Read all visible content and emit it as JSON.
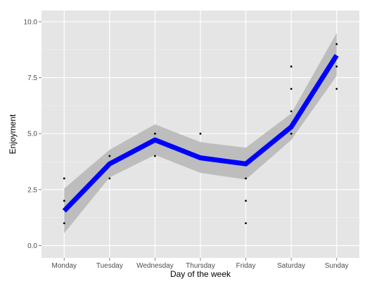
{
  "chart_data": {
    "type": "line",
    "xlabel": "Day of the week",
    "ylabel": "Enjoyment",
    "categories": [
      "Monday",
      "Tuesday",
      "Wednesday",
      "Thursday",
      "Friday",
      "Saturday",
      "Sunday"
    ],
    "ylim": [
      -0.55,
      10.5
    ],
    "yticks": [
      0.0,
      2.5,
      5.0,
      7.5,
      10.0
    ],
    "ytick_labels": [
      "0.0",
      "2.5",
      "5.0",
      "7.5",
      "10.0"
    ],
    "grid": true,
    "background_color": "#e5e5e5",
    "line_color": "#0000ff",
    "ribbon_color": "#bdbdbd",
    "point_color": "#000000",
    "series": [
      {
        "type": "line",
        "values": [
          1.55,
          3.65,
          4.72,
          3.92,
          3.65,
          5.3,
          8.5
        ]
      },
      {
        "type": "ribbon",
        "lower": [
          0.55,
          3.05,
          4.05,
          3.25,
          2.95,
          4.72,
          7.58
        ],
        "upper": [
          2.55,
          4.28,
          5.42,
          4.62,
          4.37,
          5.9,
          9.5
        ]
      },
      {
        "type": "scatter",
        "points": [
          {
            "x": "Monday",
            "y": 1
          },
          {
            "x": "Monday",
            "y": 2
          },
          {
            "x": "Monday",
            "y": 3
          },
          {
            "x": "Tuesday",
            "y": 3
          },
          {
            "x": "Tuesday",
            "y": 4
          },
          {
            "x": "Wednesday",
            "y": 4
          },
          {
            "x": "Wednesday",
            "y": 5
          },
          {
            "x": "Thursday",
            "y": 5
          },
          {
            "x": "Friday",
            "y": 1
          },
          {
            "x": "Friday",
            "y": 2
          },
          {
            "x": "Friday",
            "y": 3
          },
          {
            "x": "Saturday",
            "y": 5
          },
          {
            "x": "Saturday",
            "y": 6
          },
          {
            "x": "Saturday",
            "y": 7
          },
          {
            "x": "Saturday",
            "y": 8
          },
          {
            "x": "Sunday",
            "y": 7
          },
          {
            "x": "Sunday",
            "y": 8
          },
          {
            "x": "Sunday",
            "y": 9
          }
        ]
      }
    ]
  }
}
